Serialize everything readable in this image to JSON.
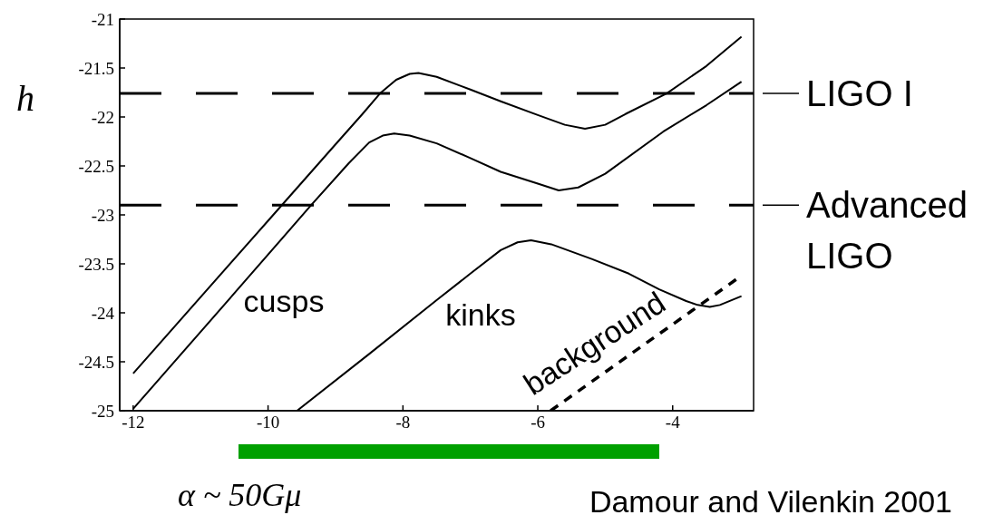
{
  "chart_data": {
    "type": "line",
    "ylabel": "h",
    "xlabel": "α ~ 50Gμ",
    "xlim": [
      -12.2,
      -2.8
    ],
    "xticks": [
      -12,
      -10,
      -8,
      -6,
      -4
    ],
    "ylim": [
      -25,
      -21
    ],
    "yticks": [
      -25,
      -24.5,
      -24,
      -23.5,
      -23,
      -22.5,
      -22,
      -21.5,
      -21
    ],
    "series": [
      {
        "color": "#000000",
        "x": [
          -12,
          -10,
          -9,
          -8.6,
          -8.34,
          -8.1,
          -7.9,
          -7.77,
          -7.5,
          -7,
          -6.55,
          -6,
          -5.6,
          -5.3,
          -5,
          -4.7,
          -4.09,
          -3.5,
          -2.98
        ],
        "values": [
          -24.62,
          -23.06,
          -22.28,
          -21.97,
          -21.76,
          -21.62,
          -21.56,
          -21.55,
          -21.59,
          -21.72,
          -21.84,
          -21.98,
          -22.08,
          -22.12,
          -22.08,
          -21.97,
          -21.76,
          -21.48,
          -21.18
        ]
      },
      {
        "color": "#000000",
        "x": [
          -12,
          -10.5,
          -9.36,
          -8.8,
          -8.5,
          -8.3,
          -8.13,
          -7.9,
          -7.5,
          -7,
          -6.55,
          -6,
          -5.69,
          -5.4,
          -5,
          -4.14,
          -3.5,
          -2.98
        ],
        "values": [
          -24.98,
          -23.8,
          -22.9,
          -22.47,
          -22.26,
          -22.19,
          -22.17,
          -22.19,
          -22.27,
          -22.42,
          -22.56,
          -22.68,
          -22.75,
          -22.72,
          -22.58,
          -22.15,
          -21.88,
          -21.64
        ]
      },
      {
        "color": "#000000",
        "x": [
          -9.57,
          -8.5,
          -7.5,
          -7,
          -6.55,
          -6.3,
          -6.1,
          -5.8,
          -5.2,
          -4.65,
          -4.2,
          -3.8,
          -3.63,
          -3.45,
          -3.3,
          -2.98
        ],
        "values": [
          -25,
          -24.42,
          -23.87,
          -23.6,
          -23.36,
          -23.28,
          -23.26,
          -23.3,
          -23.45,
          -23.6,
          -23.76,
          -23.88,
          -23.92,
          -23.94,
          -23.92,
          -23.83
        ]
      },
      {
        "color": "#000000",
        "line_style": "dashed",
        "x": [
          -5.81,
          -3.06
        ],
        "values": [
          -25,
          -23.66
        ]
      }
    ],
    "ref_lines": [
      {
        "axis": "y",
        "value": -21.76,
        "label": "LIGO I",
        "line_style": "dashed",
        "color": "#000000"
      },
      {
        "axis": "y",
        "value": -22.9,
        "label": "Advanced LIGO",
        "line_style": "dashed",
        "color": "#000000"
      }
    ],
    "annotations": [
      "cusps",
      "kinks",
      "background",
      "Damour and Vilenkin 2001"
    ],
    "grid": false,
    "marker": "none",
    "line_style": "solid"
  }
}
